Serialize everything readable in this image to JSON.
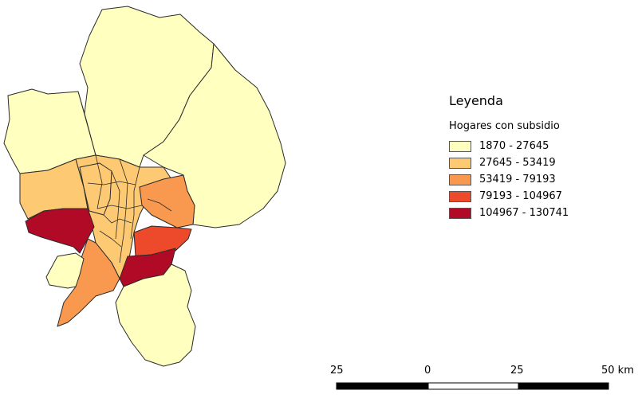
{
  "legend": {
    "title": "Leyenda",
    "subtitle": "Hogares con subsidio",
    "classes": [
      {
        "label": "1870 - 27645",
        "color": "#ffffbf"
      },
      {
        "label": "27645 - 53419",
        "color": "#fdc973"
      },
      {
        "label": "53419 - 79193",
        "color": "#f9984f"
      },
      {
        "label": "79193 - 104967",
        "color": "#ec4a2a"
      },
      {
        "label": "104967 - 130741",
        "color": "#b10a26"
      }
    ]
  },
  "scale_bar": {
    "labels": [
      "25",
      "0",
      "25",
      "50 km"
    ]
  },
  "map": {
    "border_color": "#2a2a2a",
    "regions": [
      {
        "name": "north-large",
        "class": 0
      },
      {
        "name": "northwest",
        "class": 0
      },
      {
        "name": "east-large",
        "class": 0
      },
      {
        "name": "west",
        "class": 1
      },
      {
        "name": "center-west",
        "class": 1
      },
      {
        "name": "east-mid",
        "class": 2
      },
      {
        "name": "southwest-band",
        "class": 2
      },
      {
        "name": "southwest-inset",
        "class": 0
      },
      {
        "name": "southwest-dark",
        "class": 4
      },
      {
        "name": "south-dark",
        "class": 4
      },
      {
        "name": "southeast-red",
        "class": 3
      },
      {
        "name": "south-large",
        "class": 0
      },
      {
        "name": "central-communes",
        "class": 1
      }
    ]
  }
}
